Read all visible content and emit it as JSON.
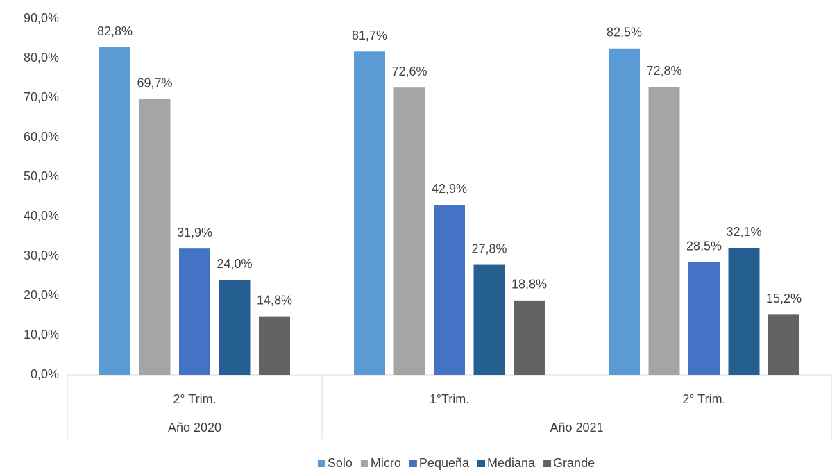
{
  "chart_data": {
    "type": "bar",
    "groups": [
      {
        "name": "Año 2020",
        "categories": [
          "2° Trim."
        ]
      },
      {
        "name": "Año 2021",
        "categories": [
          "1°Trim.",
          "2° Trim."
        ]
      }
    ],
    "series": [
      {
        "name": "Solo",
        "color": "#5b9bd5",
        "values": [
          82.8,
          81.7,
          82.5
        ],
        "value_labels": [
          "82,8%",
          "81,7%",
          "82,5%"
        ]
      },
      {
        "name": "Micro",
        "color": "#a5a5a5",
        "values": [
          69.7,
          72.6,
          72.8
        ],
        "value_labels": [
          "69,7%",
          "72,6%",
          "72,8%"
        ]
      },
      {
        "name": "Pequeña",
        "color": "#4472c4",
        "values": [
          31.9,
          42.9,
          28.5
        ],
        "value_labels": [
          "31,9%",
          "42,9%",
          "28,5%"
        ]
      },
      {
        "name": "Mediana",
        "color": "#255e91",
        "values": [
          24.0,
          27.8,
          32.1
        ],
        "value_labels": [
          "24,0%",
          "27,8%",
          "32,1%"
        ]
      },
      {
        "name": "Grande",
        "color": "#636363",
        "values": [
          14.8,
          18.8,
          15.2
        ],
        "value_labels": [
          "14,8%",
          "18,8%",
          "15,2%"
        ]
      }
    ],
    "ylim": [
      0,
      90
    ],
    "yticks": [
      {
        "value": 0,
        "label": "0,0%"
      },
      {
        "value": 10,
        "label": "10,0%"
      },
      {
        "value": 20,
        "label": "20,0%"
      },
      {
        "value": 30,
        "label": "30,0%"
      },
      {
        "value": 40,
        "label": "40,0%"
      },
      {
        "value": 50,
        "label": "50,0%"
      },
      {
        "value": 60,
        "label": "60,0%"
      },
      {
        "value": 70,
        "label": "70,0%"
      },
      {
        "value": 80,
        "label": "80,0%"
      },
      {
        "value": 90,
        "label": "90,0%"
      }
    ],
    "grid": false,
    "legend": "bottom"
  }
}
